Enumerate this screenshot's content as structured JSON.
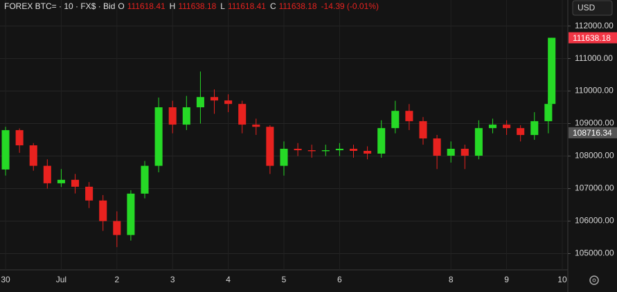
{
  "chart_data": {
    "type": "candlestick",
    "title": "FOREX BTC= · 10 · FX$ · Bid",
    "ohlc_header": [
      {
        "key": "O",
        "value": "111618.41"
      },
      {
        "key": "H",
        "value": "111638.18"
      },
      {
        "key": "L",
        "value": "111618.41"
      },
      {
        "key": "C",
        "value": "111638.18"
      }
    ],
    "change": "-14.39 (-0.01%)",
    "currency": "USD",
    "up_color": "#26d926",
    "down_color": "#e8221f",
    "x": [
      0,
      0.25,
      0.5,
      0.75,
      1,
      1.25,
      1.5,
      1.75,
      2,
      2.25,
      2.5,
      2.75,
      3,
      3.25,
      3.5,
      3.75,
      4,
      4.25,
      4.5,
      4.75,
      5,
      5.25,
      5.5,
      5.75,
      6,
      6.25,
      6.5,
      6.75,
      7,
      7.25,
      7.5,
      7.75,
      8,
      8.25,
      8.5,
      8.75,
      9,
      9.25,
      9.5,
      9.75,
      9.81
    ],
    "open": [
      107587,
      108797,
      108330,
      107700,
      107163,
      107270,
      107057,
      106633,
      106000,
      105572,
      106845,
      107700,
      109500,
      108967,
      109500,
      109815,
      109710,
      109603,
      108967,
      108900,
      107700,
      108224,
      108180,
      108150,
      108180,
      108224,
      108160,
      108075,
      108860,
      109390,
      109073,
      108542,
      108012,
      108224,
      108012,
      108860,
      108967,
      108860,
      108648,
      109073,
      109603
    ],
    "high": [
      108900,
      108850,
      108400,
      107900,
      107600,
      107450,
      107200,
      106800,
      106300,
      106950,
      107850,
      109800,
      109700,
      109850,
      110600,
      110050,
      109900,
      109700,
      109150,
      108950,
      108450,
      108400,
      108350,
      108350,
      108400,
      108350,
      108300,
      109100,
      109700,
      109600,
      109200,
      108650,
      108450,
      108350,
      109100,
      109150,
      109100,
      108950,
      109350,
      109800,
      111638.18
    ],
    "low": [
      107400,
      108100,
      107550,
      107000,
      107050,
      106850,
      106400,
      105700,
      105200,
      105400,
      106700,
      107500,
      108700,
      108800,
      109000,
      109300,
      109350,
      108700,
      108650,
      107450,
      107400,
      108000,
      107950,
      108000,
      108000,
      107950,
      107900,
      107950,
      108700,
      108800,
      108350,
      107600,
      107800,
      107600,
      107900,
      108700,
      108650,
      108450,
      108500,
      108700,
      109550
    ],
    "close": [
      108797,
      108330,
      107700,
      107163,
      107270,
      107057,
      106633,
      106000,
      105572,
      106845,
      107700,
      109500,
      108967,
      109500,
      109815,
      109710,
      109603,
      108967,
      108900,
      107700,
      108224,
      108180,
      108150,
      108180,
      108224,
      108160,
      108075,
      108860,
      109390,
      109073,
      108542,
      108012,
      108224,
      108012,
      108860,
      108967,
      108860,
      108648,
      109073,
      109603,
      111638.18
    ],
    "xlim": [
      -0.1,
      10.1
    ],
    "xticks": [
      {
        "value": 0,
        "label": "30"
      },
      {
        "value": 1,
        "label": "Jul"
      },
      2,
      3,
      4,
      5,
      6,
      8,
      9,
      10
    ],
    "ylim": [
      104500,
      112800
    ],
    "yticks": [
      {
        "value": 105000,
        "label": "105000.00"
      },
      {
        "value": 106000,
        "label": "106000.00"
      },
      {
        "value": 107000,
        "label": "107000.00"
      },
      {
        "value": 108000,
        "label": "108000.00"
      },
      {
        "value": 109000,
        "label": "109000.00"
      },
      {
        "value": 110000,
        "label": "110000.00"
      },
      {
        "value": 111000,
        "label": "111000.00"
      },
      {
        "value": 112000,
        "label": "112000.00"
      }
    ],
    "price_tags": [
      {
        "value": 111638.18,
        "color": "#f23645"
      },
      {
        "value": 108716.34,
        "color": "#555555"
      }
    ],
    "grid": true
  }
}
